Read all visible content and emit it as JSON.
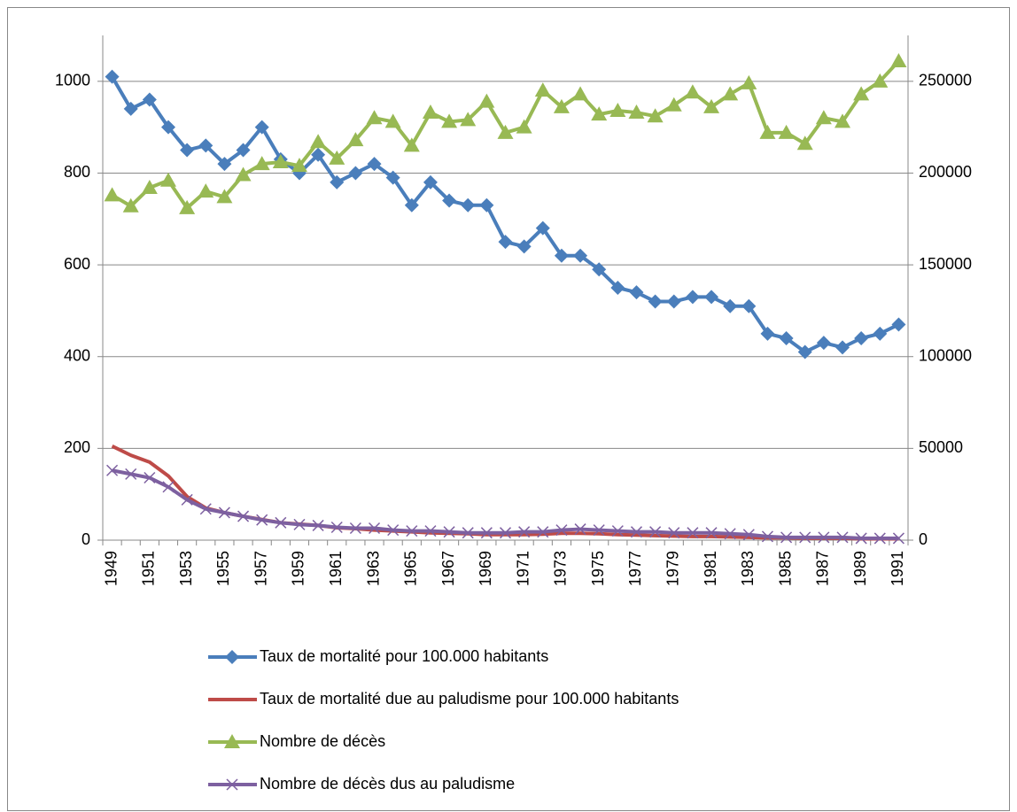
{
  "chart_data": {
    "type": "line",
    "categories": [
      "1949",
      null,
      "1951",
      null,
      "1953",
      null,
      "1955",
      null,
      "1957",
      null,
      "1959",
      null,
      "1961",
      null,
      "1963",
      null,
      "1965",
      null,
      "1967",
      null,
      "1969",
      null,
      "1971",
      null,
      "1973",
      null,
      "1975",
      null,
      "1977",
      null,
      "1979",
      null,
      "1981",
      null,
      "1983",
      null,
      "1985",
      null,
      "1987",
      null,
      "1989",
      null,
      "1991"
    ],
    "series": [
      {
        "name": "Taux de mortalité pour 100.000 habitants",
        "color": "#4a7ebb",
        "marker": "diamond",
        "values": [
          1010,
          940,
          960,
          900,
          850,
          860,
          820,
          850,
          900,
          830,
          800,
          840,
          780,
          800,
          820,
          790,
          730,
          780,
          740,
          730,
          730,
          650,
          640,
          680,
          620,
          620,
          590,
          550,
          540,
          520,
          520,
          530,
          530,
          510,
          510,
          450,
          440,
          410,
          430,
          420,
          440,
          450,
          470
        ]
      },
      {
        "name": "Taux de mortalité due au paludisme pour 100.000 habitants",
        "color": "#be4b48",
        "marker": "none",
        "values": [
          205,
          185,
          170,
          140,
          95,
          70,
          60,
          52,
          45,
          38,
          35,
          32,
          27,
          25,
          22,
          20,
          18,
          16,
          15,
          14,
          12,
          12,
          12,
          13,
          15,
          15,
          14,
          12,
          11,
          10,
          9,
          8,
          8,
          7,
          6,
          5,
          5,
          4,
          4,
          4,
          3,
          3,
          3
        ]
      },
      {
        "name": "Nombre de décès",
        "color": "#98b954",
        "marker": "triangle",
        "axis": "y2",
        "values": [
          188000,
          182000,
          192000,
          196000,
          181000,
          190000,
          187000,
          199000,
          205000,
          206000,
          204000,
          217000,
          208000,
          218000,
          230000,
          228000,
          215000,
          233000,
          228000,
          229000,
          239000,
          222000,
          225000,
          245000,
          236000,
          243000,
          232000,
          234000,
          233000,
          231000,
          237000,
          244000,
          236000,
          243000,
          249000,
          222000,
          222000,
          216000,
          230000,
          228000,
          243000,
          250000,
          261000
        ]
      },
      {
        "name": "Nombre de décès dus au paludisme",
        "color": "#7d60a0",
        "marker": "x",
        "axis": "y2",
        "values": [
          38000,
          36000,
          34000,
          29000,
          22000,
          17000,
          15000,
          13000,
          11000,
          9500,
          8500,
          8000,
          7000,
          6500,
          6500,
          5500,
          5000,
          5000,
          4500,
          4000,
          4000,
          4000,
          4500,
          4500,
          5500,
          6000,
          5500,
          5000,
          4500,
          4500,
          4000,
          4000,
          4000,
          3500,
          3000,
          2000,
          1500,
          1500,
          1500,
          1500,
          1000,
          1000,
          1000
        ]
      }
    ],
    "ylim": [
      0,
      1100
    ],
    "yticks": [
      0,
      200,
      400,
      600,
      800,
      1000
    ],
    "y2lim": [
      0,
      275000
    ],
    "y2ticks": [
      0,
      50000,
      100000,
      150000,
      200000,
      250000
    ],
    "grid": true,
    "legend": "bottom"
  }
}
